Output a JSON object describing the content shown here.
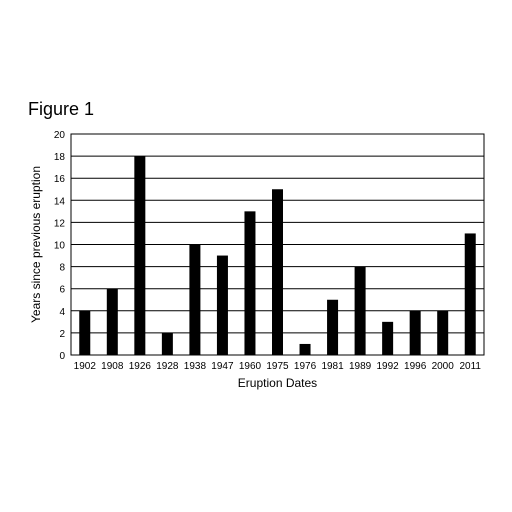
{
  "figure_label": "Figure 1",
  "chart_data": {
    "type": "bar",
    "title": "",
    "xlabel": "Eruption Dates",
    "ylabel": "Years since previous eruption",
    "categories": [
      "1902",
      "1908",
      "1926",
      "1928",
      "1938",
      "1947",
      "1960",
      "1975",
      "1976",
      "1981",
      "1989",
      "1992",
      "1996",
      "2000",
      "2011"
    ],
    "values": [
      4,
      6,
      18,
      2,
      10,
      9,
      13,
      15,
      1,
      5,
      8,
      3,
      4,
      4,
      11
    ],
    "ylim": [
      0,
      20
    ],
    "yticks": [
      0,
      2,
      4,
      6,
      8,
      10,
      12,
      14,
      16,
      18,
      20
    ],
    "grid": true,
    "bar_color": "#000000",
    "grid_color": "#000000"
  }
}
